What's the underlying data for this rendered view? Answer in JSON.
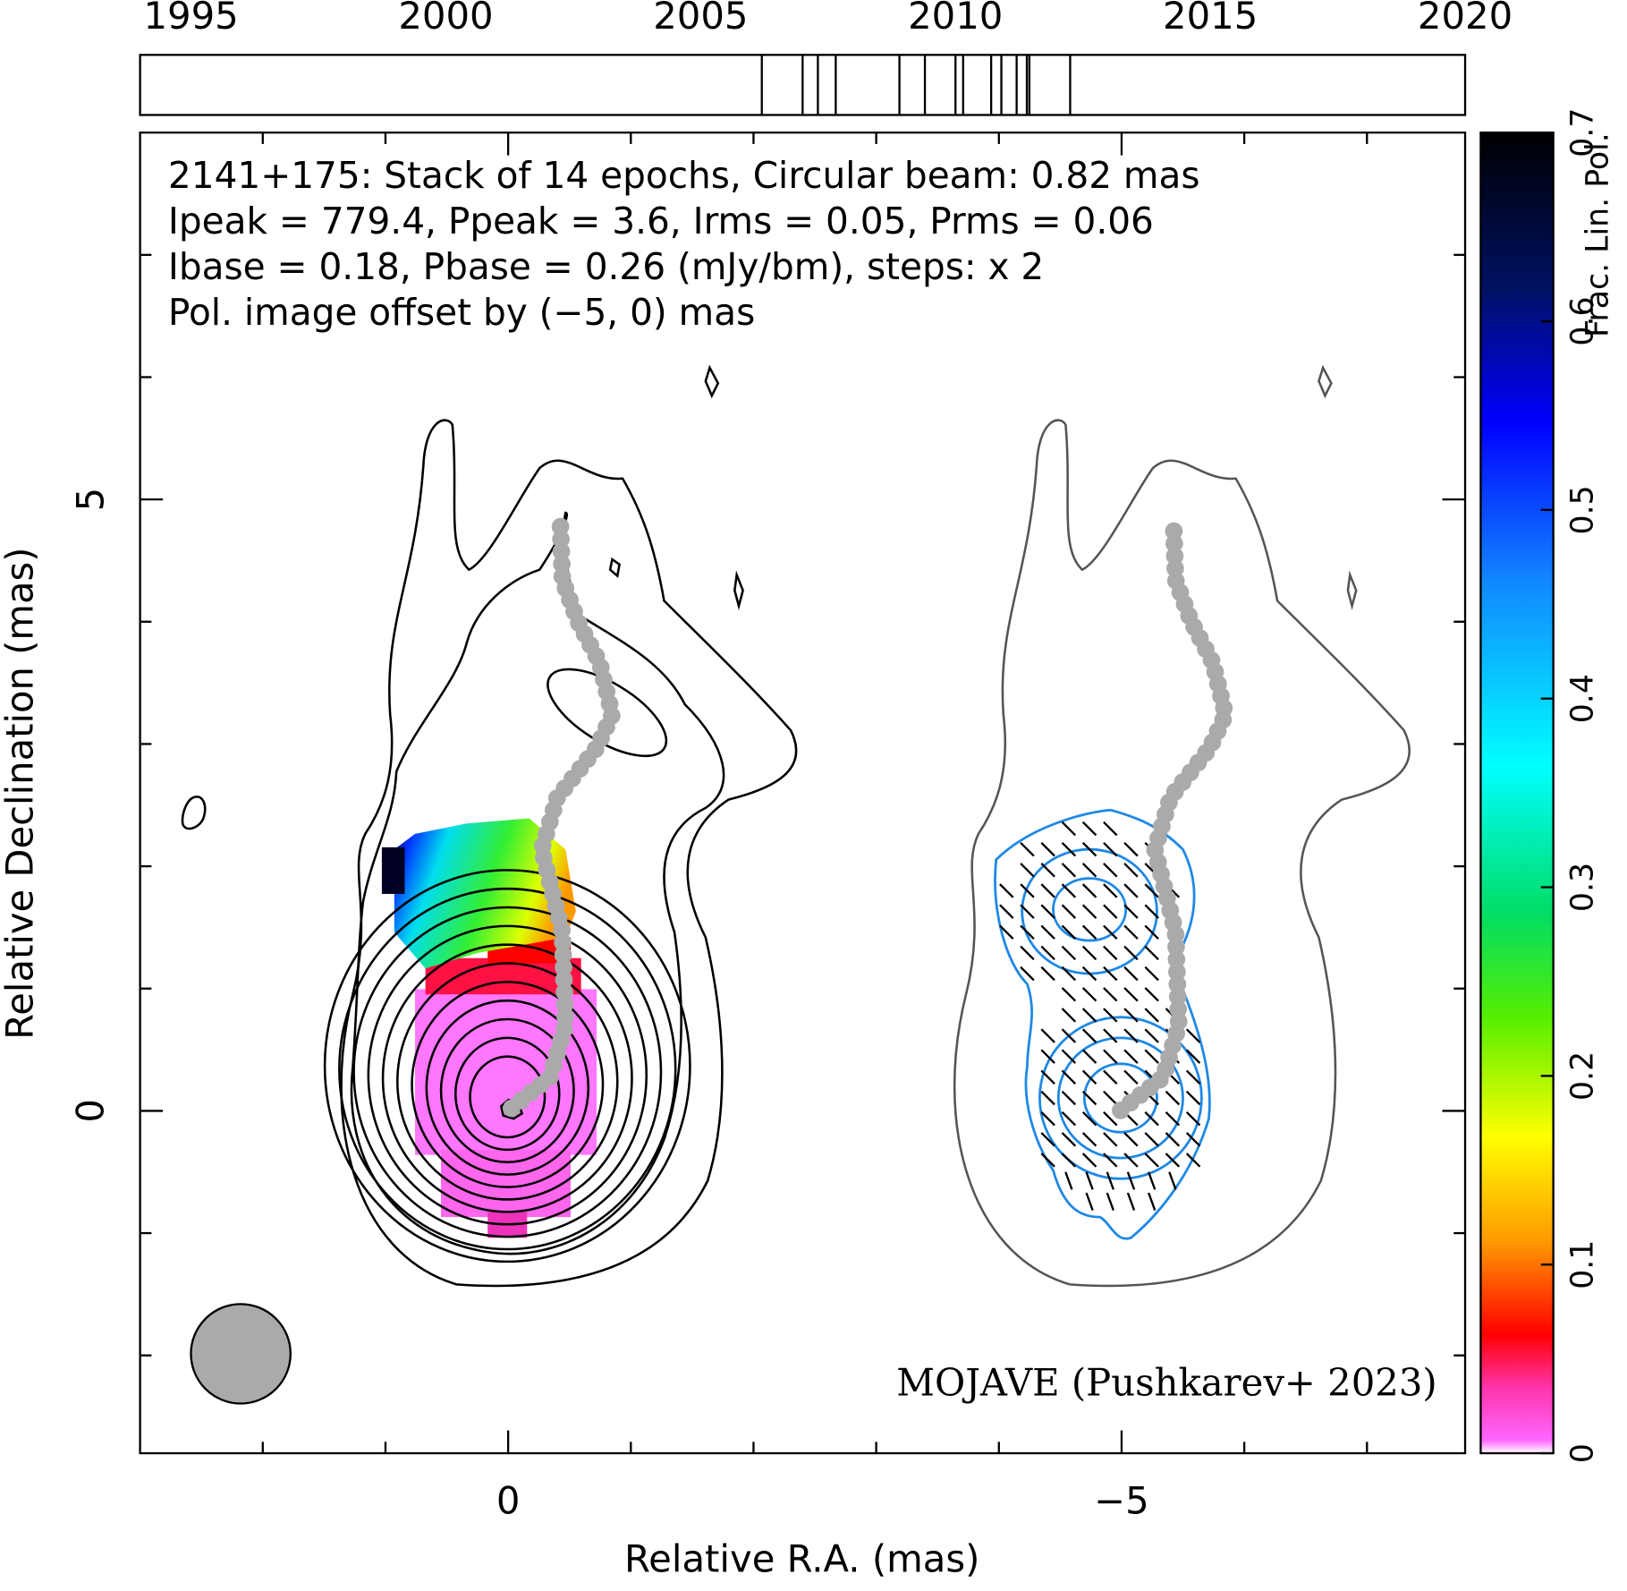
{
  "chart_data": [
    {
      "type": "timeline",
      "xlim": [
        1994,
        2020
      ],
      "xticks": [
        1995,
        2000,
        2005,
        2010,
        2015,
        2020
      ],
      "epochs": [
        2006.2,
        2007.0,
        2007.3,
        2007.65,
        2008.9,
        2009.4,
        2010.0,
        2010.15,
        2010.7,
        2010.9,
        2011.2,
        2011.4,
        2011.45,
        2012.25
      ]
    },
    {
      "type": "image",
      "annotations": [
        "2141+175: Stack of 14 epochs, Circular beam: 0.82 mas",
        "Ipeak = 779.4, Ppeak = 3.6, Irms = 0.05, Prms = 0.06",
        "Ibase = 0.18, Pbase = 0.26 (mJy/bm), steps: x 2"
      ],
      "offset_note": "Pol. image offset by (−5, 0) mas",
      "offset_note_color": "#1e88e5",
      "credit": "MOJAVE (Pushkarev+ 2023)",
      "credit_color": "#1010e0",
      "xlabel": "Relative R.A. (mas)",
      "ylabel": "Relative Declination (mas)",
      "xlim": [
        3,
        -7.8
      ],
      "ylim": [
        -2.8,
        8
      ],
      "xticks": [
        0,
        {
          "value": -5,
          "label": "−5"
        }
      ],
      "yticks": [
        0,
        5
      ],
      "xminorticks": [
        2,
        1,
        -1,
        -2,
        -3,
        -4,
        -6,
        -7
      ],
      "yminorticks": [
        -2,
        -1,
        1,
        2,
        3,
        4,
        6,
        7
      ],
      "colorbar": {
        "label": "Frac. Lin. Pol.",
        "lim": [
          0,
          0.7
        ],
        "ticks": [
          0,
          0.1,
          0.2,
          0.3,
          0.4,
          0.5,
          0.6,
          0.7
        ]
      }
    }
  ]
}
